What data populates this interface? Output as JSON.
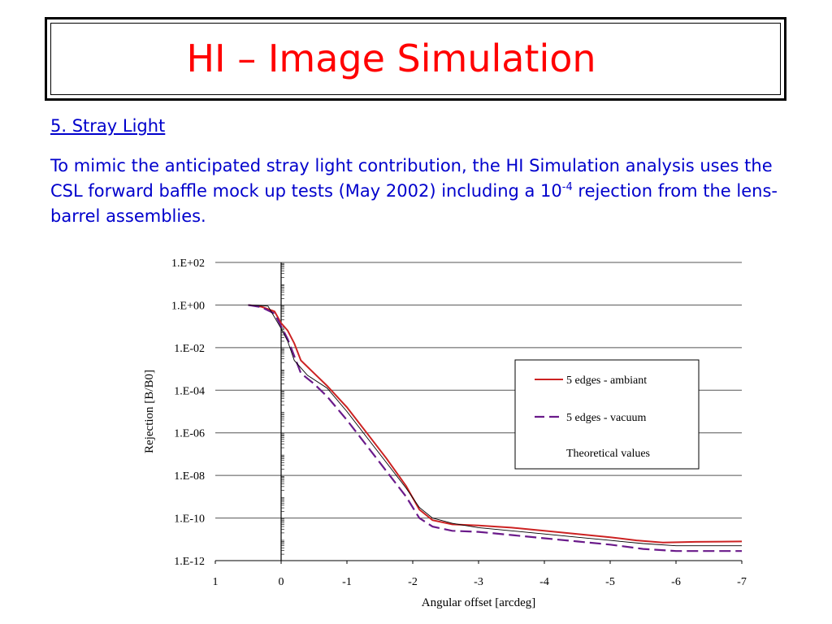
{
  "slide": {
    "title": "HI – Image Simulation",
    "heading": "5. Stray Light",
    "paragraph_before_exp": "To mimic the anticipated stray light contribution, the HI Simulation analysis uses the CSL forward baffle mock up tests (May 2002) including a 10",
    "paragraph_exp": "-4",
    "paragraph_after_exp": " rejection from the lens-barrel assemblies."
  },
  "colors": {
    "title": "#ff0000",
    "text": "#0000cc",
    "ambiant": "#cc2222",
    "vacuum": "#6a1a8a",
    "theoretical": "#000000"
  },
  "chart_data": {
    "type": "line",
    "xlabel": "Angular offset [arcdeg]",
    "ylabel": "Rejection [B/B0]",
    "x_ticks": [
      "1",
      "0",
      "-1",
      "-2",
      "-3",
      "-4",
      "-5",
      "-6",
      "-7"
    ],
    "y_ticks": [
      "1.E+02",
      "1.E+00",
      "1.E-02",
      "1.E-04",
      "1.E-06",
      "1.E-08",
      "1.E-10",
      "1.E-12"
    ],
    "xlim": [
      1,
      -7
    ],
    "ylim_log10": [
      -12,
      2
    ],
    "y_scale": "log",
    "grid": "horizontal",
    "legend_position": "right",
    "series": [
      {
        "name": "5 edges - ambiant",
        "style": "solid",
        "color": "#cc2222",
        "points": [
          [
            0.5,
            0
          ],
          [
            0.3,
            -0.08
          ],
          [
            0.1,
            -0.3
          ],
          [
            0,
            -0.85
          ],
          [
            -0.1,
            -1.2
          ],
          [
            -0.2,
            -1.8
          ],
          [
            -0.3,
            -2.6
          ],
          [
            -0.5,
            -3.2
          ],
          [
            -0.7,
            -3.8
          ],
          [
            -1.0,
            -4.8
          ],
          [
            -1.3,
            -6.0
          ],
          [
            -1.6,
            -7.2
          ],
          [
            -1.9,
            -8.5
          ],
          [
            -2.1,
            -9.6
          ],
          [
            -2.3,
            -10.1
          ],
          [
            -2.6,
            -10.3
          ],
          [
            -3.0,
            -10.35
          ],
          [
            -3.5,
            -10.45
          ],
          [
            -4.0,
            -10.6
          ],
          [
            -4.5,
            -10.75
          ],
          [
            -5.0,
            -10.9
          ],
          [
            -5.4,
            -11.05
          ],
          [
            -5.8,
            -11.15
          ],
          [
            -6.3,
            -11.12
          ],
          [
            -7.0,
            -11.1
          ]
        ]
      },
      {
        "name": "5 edges - vacuum",
        "style": "dashed",
        "color": "#6a1a8a",
        "points": [
          [
            0.5,
            0
          ],
          [
            0.3,
            -0.1
          ],
          [
            0.1,
            -0.4
          ],
          [
            0,
            -1.0
          ],
          [
            -0.1,
            -1.6
          ],
          [
            -0.2,
            -2.4
          ],
          [
            -0.3,
            -3.2
          ],
          [
            -0.5,
            -3.7
          ],
          [
            -0.7,
            -4.3
          ],
          [
            -1.0,
            -5.4
          ],
          [
            -1.3,
            -6.6
          ],
          [
            -1.6,
            -7.8
          ],
          [
            -1.9,
            -9.0
          ],
          [
            -2.1,
            -10.0
          ],
          [
            -2.3,
            -10.4
          ],
          [
            -2.6,
            -10.6
          ],
          [
            -3.0,
            -10.65
          ],
          [
            -3.5,
            -10.8
          ],
          [
            -4.0,
            -10.95
          ],
          [
            -4.5,
            -11.1
          ],
          [
            -5.0,
            -11.25
          ],
          [
            -5.5,
            -11.45
          ],
          [
            -6.0,
            -11.55
          ],
          [
            -7.0,
            -11.55
          ]
        ]
      },
      {
        "name": "Theoretical values",
        "style": "thin",
        "color": "#000000",
        "points": [
          [
            0.5,
            0
          ],
          [
            0.2,
            -0.05
          ],
          [
            0,
            -1.1
          ],
          [
            -0.1,
            -1.7
          ],
          [
            -0.2,
            -2.6
          ],
          [
            -0.4,
            -3.3
          ],
          [
            -0.7,
            -3.9
          ],
          [
            -1.0,
            -5.0
          ],
          [
            -1.3,
            -6.2
          ],
          [
            -1.6,
            -7.4
          ],
          [
            -1.9,
            -8.6
          ],
          [
            -2.1,
            -9.5
          ],
          [
            -2.3,
            -10.0
          ],
          [
            -2.6,
            -10.25
          ],
          [
            -3.0,
            -10.45
          ],
          [
            -3.5,
            -10.6
          ],
          [
            -4.0,
            -10.75
          ],
          [
            -4.5,
            -10.9
          ],
          [
            -5.0,
            -11.05
          ],
          [
            -5.5,
            -11.2
          ],
          [
            -6.0,
            -11.3
          ],
          [
            -7.0,
            -11.3
          ]
        ]
      }
    ]
  }
}
